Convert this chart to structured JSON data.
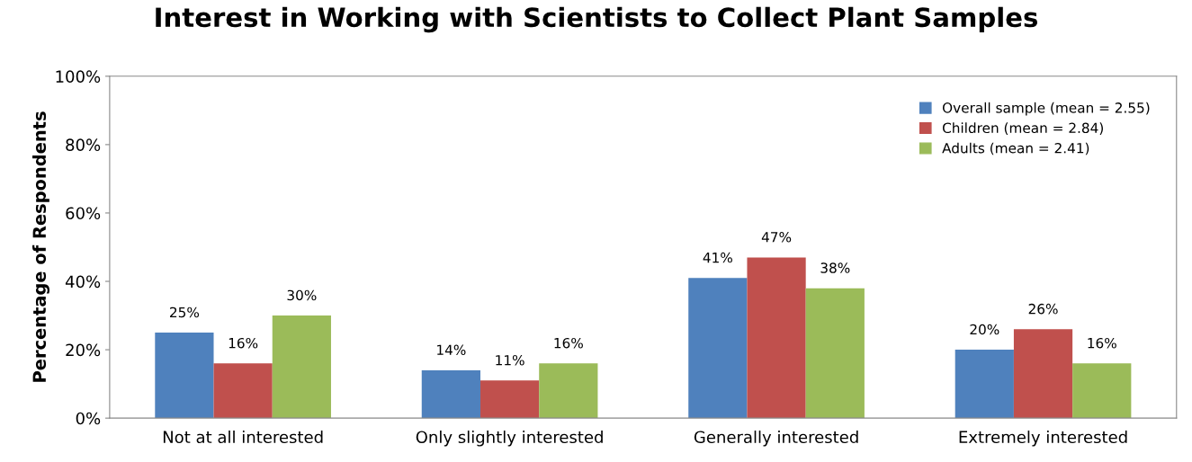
{
  "chart_data": {
    "type": "bar",
    "title": "Interest in Working with Scientists to Collect Plant Samples",
    "ylabel": "Percentage of Respondents",
    "categories": [
      "Not at all interested",
      "Only slightly interested",
      "Generally interested",
      "Extremely interested"
    ],
    "series": [
      {
        "name": "Overall sample (mean = 2.55)",
        "color": "#4f81bd",
        "values": [
          25,
          14,
          41,
          20
        ],
        "value_labels": [
          "25%",
          "14%",
          "41%",
          "20%"
        ]
      },
      {
        "name": "Children (mean = 2.84)",
        "color": "#c0504d",
        "values": [
          16,
          11,
          47,
          26
        ],
        "value_labels": [
          "16%",
          "11%",
          "47%",
          "26%"
        ]
      },
      {
        "name": "Adults (mean = 2.41)",
        "color": "#9bbb59",
        "values": [
          30,
          16,
          38,
          16
        ],
        "value_labels": [
          "30%",
          "16%",
          "38%",
          "16%"
        ]
      }
    ],
    "ylim": [
      0,
      100
    ],
    "yticks": [
      {
        "value": 0,
        "label": "0%"
      },
      {
        "value": 20,
        "label": "20%"
      },
      {
        "value": 40,
        "label": "40%"
      },
      {
        "value": 60,
        "label": "60%"
      },
      {
        "value": 80,
        "label": "80%"
      },
      {
        "value": 100,
        "label": "100%"
      }
    ],
    "grid": false,
    "legend": "top right"
  }
}
